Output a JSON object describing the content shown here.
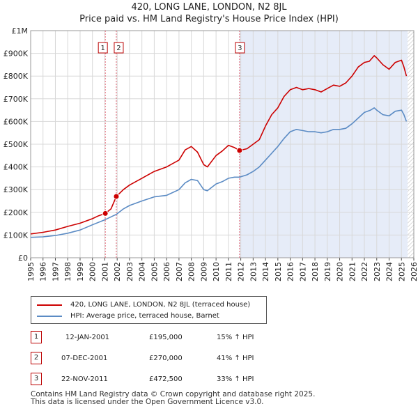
{
  "title": {
    "line1": "420, LONG LANE, LONDON, N2 8JL",
    "line2": "Price paid vs. HM Land Registry's House Price Index (HPI)"
  },
  "colors": {
    "property": "#cc0000",
    "hpi": "#5b8bc4",
    "shade": "#e6ecf8",
    "marker_line": "#e06070"
  },
  "chart_data": {
    "type": "line",
    "title": "Price paid vs. HM Land Registry's House Price Index (HPI)",
    "xlabel": "",
    "ylabel": "",
    "xlim": [
      1995,
      2026
    ],
    "ylim": [
      0,
      1000000
    ],
    "grid": true,
    "y_ticks": [
      0,
      100000,
      200000,
      300000,
      400000,
      500000,
      600000,
      700000,
      800000,
      900000,
      1000000
    ],
    "y_tick_labels": [
      "£0",
      "£100K",
      "£200K",
      "£300K",
      "£400K",
      "£500K",
      "£600K",
      "£700K",
      "£800K",
      "£900K",
      "£1M"
    ],
    "x_ticks": [
      1995,
      1996,
      1997,
      1998,
      1999,
      2000,
      2001,
      2002,
      2003,
      2004,
      2005,
      2006,
      2007,
      2008,
      2009,
      2010,
      2011,
      2012,
      2013,
      2014,
      2015,
      2016,
      2017,
      2018,
      2019,
      2020,
      2021,
      2022,
      2023,
      2024,
      2025,
      2026
    ],
    "x_tick_labels": [
      "1995",
      "1996",
      "1997",
      "1998",
      "1999",
      "2000",
      "2001",
      "2002",
      "2003",
      "2004",
      "2005",
      "2006",
      "2007",
      "2008",
      "2009",
      "2010",
      "2011",
      "2012",
      "2013",
      "2014",
      "2015",
      "2016",
      "2017",
      "2018",
      "2019",
      "2020",
      "2021",
      "2022",
      "2023",
      "2024",
      "2025",
      "2026"
    ],
    "shaded_region": [
      2011.9,
      2025.5
    ],
    "hatched_region": [
      2025.5,
      2026
    ],
    "series": [
      {
        "name": "420, LONG LANE, LONDON, N2 8JL (terraced house)",
        "x": [
          1995.0,
          1996.0,
          1997.0,
          1998.0,
          1999.0,
          2000.0,
          2000.5,
          2001.04,
          2001.5,
          2001.93,
          2002.5,
          2003.0,
          2004.0,
          2005.0,
          2006.0,
          2007.0,
          2007.5,
          2008.0,
          2008.5,
          2009.0,
          2009.3,
          2010.0,
          2010.5,
          2011.0,
          2011.5,
          2011.9,
          2012.5,
          2013.0,
          2013.5,
          2014.0,
          2014.5,
          2015.0,
          2015.5,
          2016.0,
          2016.5,
          2017.0,
          2017.5,
          2018.0,
          2018.5,
          2019.0,
          2019.5,
          2020.0,
          2020.5,
          2021.0,
          2021.5,
          2022.0,
          2022.4,
          2022.8,
          2023.0,
          2023.5,
          2024.0,
          2024.5,
          2025.0,
          2025.2,
          2025.4
        ],
        "y": [
          105000,
          112000,
          122000,
          138000,
          152000,
          172000,
          185000,
          195000,
          215000,
          270000,
          300000,
          320000,
          350000,
          380000,
          400000,
          430000,
          475000,
          490000,
          465000,
          410000,
          400000,
          450000,
          470000,
          495000,
          485000,
          472500,
          480000,
          500000,
          520000,
          580000,
          630000,
          660000,
          710000,
          740000,
          750000,
          740000,
          745000,
          740000,
          730000,
          745000,
          760000,
          755000,
          770000,
          800000,
          840000,
          860000,
          865000,
          890000,
          880000,
          850000,
          830000,
          860000,
          870000,
          840000,
          800000
        ]
      },
      {
        "name": "HPI: Average price, terraced house, Barnet",
        "x": [
          1995.0,
          1996.0,
          1997.0,
          1998.0,
          1999.0,
          2000.0,
          2001.04,
          2001.93,
          2002.5,
          2003.0,
          2004.0,
          2005.0,
          2006.0,
          2007.0,
          2007.5,
          2008.0,
          2008.5,
          2009.0,
          2009.3,
          2010.0,
          2010.5,
          2011.0,
          2011.5,
          2011.9,
          2012.5,
          2013.0,
          2013.5,
          2014.0,
          2014.5,
          2015.0,
          2015.5,
          2016.0,
          2016.5,
          2017.0,
          2017.5,
          2018.0,
          2018.5,
          2019.0,
          2019.5,
          2020.0,
          2020.5,
          2021.0,
          2021.5,
          2022.0,
          2022.5,
          2022.8,
          2023.0,
          2023.5,
          2024.0,
          2024.5,
          2025.0,
          2025.2,
          2025.4
        ],
        "y": [
          90000,
          92000,
          98000,
          108000,
          122000,
          145000,
          168000,
          191000,
          215000,
          230000,
          250000,
          268000,
          275000,
          300000,
          330000,
          345000,
          340000,
          300000,
          295000,
          325000,
          335000,
          350000,
          355000,
          355000,
          365000,
          380000,
          400000,
          430000,
          460000,
          490000,
          525000,
          555000,
          565000,
          560000,
          555000,
          555000,
          550000,
          555000,
          565000,
          565000,
          570000,
          590000,
          615000,
          640000,
          650000,
          660000,
          650000,
          630000,
          625000,
          645000,
          650000,
          630000,
          600000
        ]
      }
    ],
    "sales": [
      {
        "label": "1",
        "date": "12-JAN-2001",
        "price": "£195,000",
        "hpi_change": "15% ↑ HPI",
        "x": 2001.04,
        "y": 195000
      },
      {
        "label": "2",
        "date": "07-DEC-2001",
        "price": "£270,000",
        "hpi_change": "41% ↑ HPI",
        "x": 2001.93,
        "y": 270000
      },
      {
        "label": "3",
        "date": "22-NOV-2011",
        "price": "£472,500",
        "hpi_change": "33% ↑ HPI",
        "x": 2011.9,
        "y": 472500
      }
    ]
  },
  "legend": {
    "property_label": "420, LONG LANE, LONDON, N2 8JL (terraced house)",
    "hpi_label": "HPI: Average price, terraced house, Barnet"
  },
  "footer": {
    "line1": "Contains HM Land Registry data © Crown copyright and database right 2025.",
    "line2": "This data is licensed under the Open Government Licence v3.0."
  }
}
